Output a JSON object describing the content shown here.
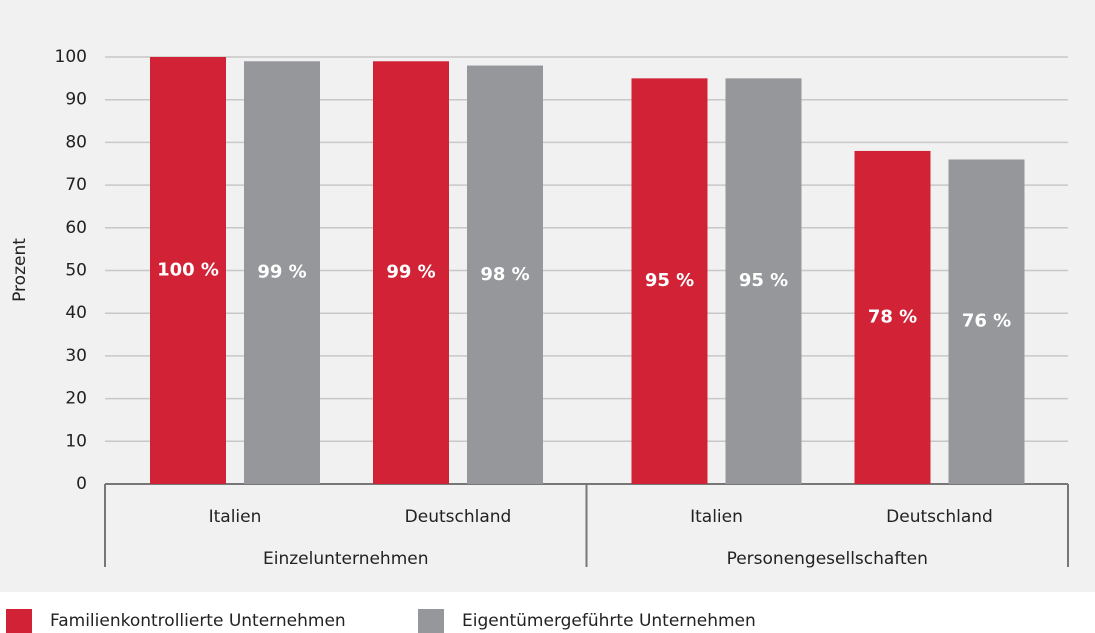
{
  "chart_data": {
    "type": "bar",
    "y_label": "Prozent",
    "groups": [
      {
        "name": "Einzelunternehmen",
        "categories": [
          "Italien",
          "Deutschland"
        ]
      },
      {
        "name": "Personengesellschaften",
        "categories": [
          "Italien",
          "Deutschland"
        ]
      }
    ],
    "series": [
      {
        "name": "Familienkontrollierte Unternehmen",
        "color": "#d12236",
        "values": [
          100,
          99,
          95,
          78
        ],
        "value_labels": [
          "100 %",
          "99 %",
          "95 %",
          "78 %"
        ]
      },
      {
        "name": "Eigentümergeführte Unternehmen",
        "color": "#96979b",
        "values": [
          99,
          98,
          95,
          76
        ],
        "value_labels": [
          "99 %",
          "98 %",
          "95 %",
          "76 %"
        ]
      }
    ],
    "ylim": [
      0,
      100
    ],
    "yticks": [
      0,
      10,
      20,
      30,
      40,
      50,
      60,
      70,
      80,
      90,
      100
    ],
    "grid": true
  }
}
